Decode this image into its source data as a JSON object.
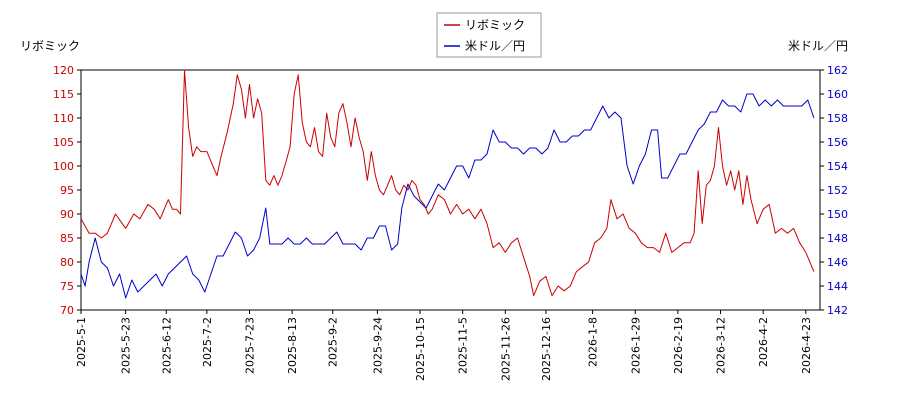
{
  "chart_data": {
    "type": "line",
    "left_axis_title": "リボミック",
    "right_axis_title": "米ドル／円",
    "legend_position": "top-center",
    "grid": false,
    "y_left": {
      "range": [
        70,
        120
      ],
      "ticks": [
        70,
        75,
        80,
        85,
        90,
        95,
        100,
        105,
        110,
        115,
        120
      ]
    },
    "y_right": {
      "range": [
        142,
        162
      ],
      "ticks": [
        142,
        144,
        146,
        148,
        150,
        152,
        154,
        156,
        158,
        160,
        162
      ]
    },
    "x": {
      "range": [
        "2025-05-01",
        "2026-04-30"
      ],
      "ticks": [
        "2025-5-1",
        "2025-5-23",
        "2025-6-12",
        "2025-7-2",
        "2025-7-23",
        "2025-8-13",
        "2025-9-2",
        "2025-9-24",
        "2025-10-15",
        "2025-11-5",
        "2025-11-26",
        "2025-12-16",
        "2026-1-8",
        "2026-1-29",
        "2026-2-19",
        "2026-3-12",
        "2026-4-2",
        "2026-4-23"
      ]
    },
    "series": [
      {
        "name": "リボミック",
        "axis": "left",
        "color": "#cc0000",
        "points": [
          [
            "2025-05-01",
            89
          ],
          [
            "2025-05-05",
            86
          ],
          [
            "2025-05-08",
            86
          ],
          [
            "2025-05-11",
            85
          ],
          [
            "2025-05-14",
            86
          ],
          [
            "2025-05-18",
            90
          ],
          [
            "2025-05-23",
            87
          ],
          [
            "2025-05-27",
            90
          ],
          [
            "2025-05-30",
            89
          ],
          [
            "2025-06-03",
            92
          ],
          [
            "2025-06-06",
            91
          ],
          [
            "2025-06-09",
            89
          ],
          [
            "2025-06-13",
            93
          ],
          [
            "2025-06-15",
            91
          ],
          [
            "2025-06-17",
            91
          ],
          [
            "2025-06-19",
            90
          ],
          [
            "2025-06-21",
            120
          ],
          [
            "2025-06-23",
            108
          ],
          [
            "2025-06-25",
            102
          ],
          [
            "2025-06-27",
            104
          ],
          [
            "2025-06-29",
            103
          ],
          [
            "2025-07-02",
            103
          ],
          [
            "2025-07-04",
            101
          ],
          [
            "2025-07-07",
            98
          ],
          [
            "2025-07-09",
            102
          ],
          [
            "2025-07-12",
            107
          ],
          [
            "2025-07-15",
            113
          ],
          [
            "2025-07-17",
            119
          ],
          [
            "2025-07-19",
            116
          ],
          [
            "2025-07-21",
            110
          ],
          [
            "2025-07-23",
            117
          ],
          [
            "2025-07-25",
            110
          ],
          [
            "2025-07-27",
            114
          ],
          [
            "2025-07-29",
            111
          ],
          [
            "2025-07-31",
            97
          ],
          [
            "2025-08-02",
            96
          ],
          [
            "2025-08-04",
            98
          ],
          [
            "2025-08-06",
            96
          ],
          [
            "2025-08-08",
            98
          ],
          [
            "2025-08-10",
            101
          ],
          [
            "2025-08-12",
            104
          ],
          [
            "2025-08-14",
            115
          ],
          [
            "2025-08-16",
            119
          ],
          [
            "2025-08-18",
            109
          ],
          [
            "2025-08-20",
            105
          ],
          [
            "2025-08-22",
            104
          ],
          [
            "2025-08-24",
            108
          ],
          [
            "2025-08-26",
            103
          ],
          [
            "2025-08-28",
            102
          ],
          [
            "2025-08-30",
            111
          ],
          [
            "2025-09-01",
            106
          ],
          [
            "2025-09-03",
            104
          ],
          [
            "2025-09-05",
            111
          ],
          [
            "2025-09-07",
            113
          ],
          [
            "2025-09-09",
            109
          ],
          [
            "2025-09-11",
            104
          ],
          [
            "2025-09-13",
            110
          ],
          [
            "2025-09-15",
            106
          ],
          [
            "2025-09-17",
            103
          ],
          [
            "2025-09-19",
            97
          ],
          [
            "2025-09-21",
            103
          ],
          [
            "2025-09-23",
            98
          ],
          [
            "2025-09-25",
            95
          ],
          [
            "2025-09-27",
            94
          ],
          [
            "2025-09-29",
            96
          ],
          [
            "2025-10-01",
            98
          ],
          [
            "2025-10-03",
            95
          ],
          [
            "2025-10-05",
            94
          ],
          [
            "2025-10-07",
            96
          ],
          [
            "2025-10-09",
            95
          ],
          [
            "2025-10-11",
            97
          ],
          [
            "2025-10-13",
            96
          ],
          [
            "2025-10-15",
            93
          ],
          [
            "2025-10-17",
            92
          ],
          [
            "2025-10-19",
            90
          ],
          [
            "2025-10-21",
            91
          ],
          [
            "2025-10-24",
            94
          ],
          [
            "2025-10-27",
            93
          ],
          [
            "2025-10-30",
            90
          ],
          [
            "2025-11-02",
            92
          ],
          [
            "2025-11-05",
            90
          ],
          [
            "2025-11-08",
            91
          ],
          [
            "2025-11-11",
            89
          ],
          [
            "2025-11-14",
            91
          ],
          [
            "2025-11-17",
            88
          ],
          [
            "2025-11-20",
            83
          ],
          [
            "2025-11-23",
            84
          ],
          [
            "2025-11-26",
            82
          ],
          [
            "2025-11-29",
            84
          ],
          [
            "2025-12-02",
            85
          ],
          [
            "2025-12-05",
            81
          ],
          [
            "2025-12-08",
            77
          ],
          [
            "2025-12-10",
            73
          ],
          [
            "2025-12-13",
            76
          ],
          [
            "2025-12-16",
            77
          ],
          [
            "2025-12-19",
            73
          ],
          [
            "2025-12-22",
            75
          ],
          [
            "2025-12-25",
            74
          ],
          [
            "2025-12-28",
            75
          ],
          [
            "2025-12-31",
            78
          ],
          [
            "2026-01-03",
            79
          ],
          [
            "2026-01-06",
            80
          ],
          [
            "2026-01-09",
            84
          ],
          [
            "2026-01-12",
            85
          ],
          [
            "2026-01-15",
            87
          ],
          [
            "2026-01-17",
            93
          ],
          [
            "2026-01-20",
            89
          ],
          [
            "2026-01-23",
            90
          ],
          [
            "2026-01-26",
            87
          ],
          [
            "2026-01-29",
            86
          ],
          [
            "2026-02-01",
            84
          ],
          [
            "2026-02-04",
            83
          ],
          [
            "2026-02-07",
            83
          ],
          [
            "2026-02-10",
            82
          ],
          [
            "2026-02-13",
            86
          ],
          [
            "2026-02-16",
            82
          ],
          [
            "2026-02-19",
            83
          ],
          [
            "2026-02-22",
            84
          ],
          [
            "2026-02-25",
            84
          ],
          [
            "2026-02-27",
            86
          ],
          [
            "2026-03-01",
            99
          ],
          [
            "2026-03-03",
            88
          ],
          [
            "2026-03-05",
            96
          ],
          [
            "2026-03-07",
            97
          ],
          [
            "2026-03-09",
            100
          ],
          [
            "2026-03-11",
            108
          ],
          [
            "2026-03-13",
            100
          ],
          [
            "2026-03-15",
            96
          ],
          [
            "2026-03-17",
            99
          ],
          [
            "2026-03-19",
            95
          ],
          [
            "2026-03-21",
            99
          ],
          [
            "2026-03-23",
            92
          ],
          [
            "2026-03-25",
            98
          ],
          [
            "2026-03-27",
            93
          ],
          [
            "2026-03-30",
            88
          ],
          [
            "2026-04-02",
            91
          ],
          [
            "2026-04-05",
            92
          ],
          [
            "2026-04-08",
            86
          ],
          [
            "2026-04-11",
            87
          ],
          [
            "2026-04-14",
            86
          ],
          [
            "2026-04-17",
            87
          ],
          [
            "2026-04-20",
            84
          ],
          [
            "2026-04-23",
            82
          ],
          [
            "2026-04-27",
            78
          ]
        ]
      },
      {
        "name": "米ドル／円",
        "axis": "right",
        "color": "#0000cc",
        "points": [
          [
            "2025-05-01",
            145
          ],
          [
            "2025-05-03",
            144
          ],
          [
            "2025-05-05",
            146
          ],
          [
            "2025-05-08",
            148
          ],
          [
            "2025-05-11",
            146
          ],
          [
            "2025-05-14",
            145.5
          ],
          [
            "2025-05-17",
            144
          ],
          [
            "2025-05-20",
            145
          ],
          [
            "2025-05-23",
            143
          ],
          [
            "2025-05-26",
            144.5
          ],
          [
            "2025-05-29",
            143.5
          ],
          [
            "2025-06-01",
            144
          ],
          [
            "2025-06-04",
            144.5
          ],
          [
            "2025-06-07",
            145
          ],
          [
            "2025-06-10",
            144
          ],
          [
            "2025-06-13",
            145
          ],
          [
            "2025-06-16",
            145.5
          ],
          [
            "2025-06-19",
            146
          ],
          [
            "2025-06-22",
            146.5
          ],
          [
            "2025-06-25",
            145
          ],
          [
            "2025-06-28",
            144.5
          ],
          [
            "2025-07-01",
            143.5
          ],
          [
            "2025-07-04",
            145
          ],
          [
            "2025-07-07",
            146.5
          ],
          [
            "2025-07-10",
            146.5
          ],
          [
            "2025-07-13",
            147.5
          ],
          [
            "2025-07-16",
            148.5
          ],
          [
            "2025-07-19",
            148
          ],
          [
            "2025-07-22",
            146.5
          ],
          [
            "2025-07-25",
            147
          ],
          [
            "2025-07-28",
            148
          ],
          [
            "2025-07-31",
            150.5
          ],
          [
            "2025-08-02",
            147.5
          ],
          [
            "2025-08-05",
            147.5
          ],
          [
            "2025-08-08",
            147.5
          ],
          [
            "2025-08-11",
            148
          ],
          [
            "2025-08-14",
            147.5
          ],
          [
            "2025-08-17",
            147.5
          ],
          [
            "2025-08-20",
            148
          ],
          [
            "2025-08-23",
            147.5
          ],
          [
            "2025-08-26",
            147.5
          ],
          [
            "2025-08-29",
            147.5
          ],
          [
            "2025-09-01",
            148
          ],
          [
            "2025-09-04",
            148.5
          ],
          [
            "2025-09-07",
            147.5
          ],
          [
            "2025-09-10",
            147.5
          ],
          [
            "2025-09-13",
            147.5
          ],
          [
            "2025-09-16",
            147
          ],
          [
            "2025-09-19",
            148
          ],
          [
            "2025-09-22",
            148
          ],
          [
            "2025-09-25",
            149
          ],
          [
            "2025-09-28",
            149
          ],
          [
            "2025-10-01",
            147
          ],
          [
            "2025-10-04",
            147.5
          ],
          [
            "2025-10-06",
            150.5
          ],
          [
            "2025-10-09",
            152.5
          ],
          [
            "2025-10-12",
            151.5
          ],
          [
            "2025-10-15",
            151
          ],
          [
            "2025-10-18",
            150.5
          ],
          [
            "2025-10-21",
            151.5
          ],
          [
            "2025-10-24",
            152.5
          ],
          [
            "2025-10-27",
            152
          ],
          [
            "2025-10-30",
            153
          ],
          [
            "2025-11-02",
            154
          ],
          [
            "2025-11-05",
            154
          ],
          [
            "2025-11-08",
            153
          ],
          [
            "2025-11-11",
            154.5
          ],
          [
            "2025-11-14",
            154.5
          ],
          [
            "2025-11-17",
            155
          ],
          [
            "2025-11-20",
            157
          ],
          [
            "2025-11-23",
            156
          ],
          [
            "2025-11-26",
            156
          ],
          [
            "2025-11-29",
            155.5
          ],
          [
            "2025-12-02",
            155.5
          ],
          [
            "2025-12-05",
            155
          ],
          [
            "2025-12-08",
            155.5
          ],
          [
            "2025-12-11",
            155.5
          ],
          [
            "2025-12-14",
            155
          ],
          [
            "2025-12-17",
            155.5
          ],
          [
            "2025-12-20",
            157
          ],
          [
            "2025-12-23",
            156
          ],
          [
            "2025-12-26",
            156
          ],
          [
            "2025-12-29",
            156.5
          ],
          [
            "2026-01-01",
            156.5
          ],
          [
            "2026-01-04",
            157
          ],
          [
            "2026-01-07",
            157
          ],
          [
            "2026-01-10",
            158
          ],
          [
            "2026-01-13",
            159
          ],
          [
            "2026-01-16",
            158
          ],
          [
            "2026-01-19",
            158.5
          ],
          [
            "2026-01-22",
            158
          ],
          [
            "2026-01-25",
            154
          ],
          [
            "2026-01-28",
            152.5
          ],
          [
            "2026-01-31",
            154
          ],
          [
            "2026-02-03",
            155
          ],
          [
            "2026-02-06",
            157
          ],
          [
            "2026-02-09",
            157
          ],
          [
            "2026-02-11",
            153
          ],
          [
            "2026-02-14",
            153
          ],
          [
            "2026-02-17",
            154
          ],
          [
            "2026-02-20",
            155
          ],
          [
            "2026-02-23",
            155
          ],
          [
            "2026-02-26",
            156
          ],
          [
            "2026-03-01",
            157
          ],
          [
            "2026-03-04",
            157.5
          ],
          [
            "2026-03-07",
            158.5
          ],
          [
            "2026-03-10",
            158.5
          ],
          [
            "2026-03-13",
            159.5
          ],
          [
            "2026-03-16",
            159
          ],
          [
            "2026-03-19",
            159
          ],
          [
            "2026-03-22",
            158.5
          ],
          [
            "2026-03-25",
            160
          ],
          [
            "2026-03-28",
            160
          ],
          [
            "2026-03-31",
            159
          ],
          [
            "2026-04-03",
            159.5
          ],
          [
            "2026-04-06",
            159
          ],
          [
            "2026-04-09",
            159.5
          ],
          [
            "2026-04-12",
            159
          ],
          [
            "2026-04-15",
            159
          ],
          [
            "2026-04-18",
            159
          ],
          [
            "2026-04-21",
            159
          ],
          [
            "2026-04-24",
            159.5
          ],
          [
            "2026-04-27",
            158
          ]
        ]
      }
    ]
  }
}
